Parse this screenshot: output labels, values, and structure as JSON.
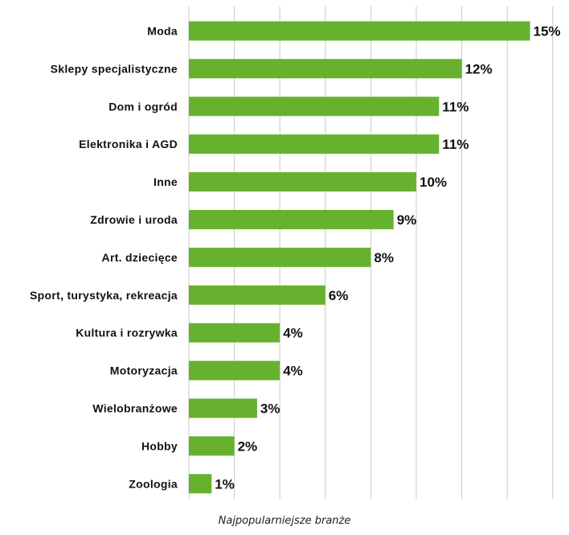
{
  "chart_data": {
    "type": "bar",
    "orientation": "horizontal",
    "caption": "Najpopularniejsze branże",
    "categories": [
      "Moda",
      "Sklepy specjalistyczne",
      "Dom i ogród",
      "Elektronika i AGD",
      "Inne",
      "Zdrowie i uroda",
      "Art. dziecięce",
      "Sport, turystyka, rekreacja",
      "Kultura i rozrywka",
      "Motoryzacja",
      "Wielobranżowe",
      "Hobby",
      "Zoologia"
    ],
    "values": [
      15,
      12,
      11,
      11,
      10,
      9,
      8,
      6,
      4,
      4,
      3,
      2,
      1
    ],
    "data_labels": [
      "15%",
      "12%",
      "11%",
      "11%",
      "10%",
      "9%",
      "8%",
      "6%",
      "4%",
      "4%",
      "3%",
      "2%",
      "1%"
    ],
    "xlim": [
      0,
      16
    ],
    "grid": true,
    "bar_color": "#66b22e",
    "grid_color": "#c8c8c8"
  }
}
